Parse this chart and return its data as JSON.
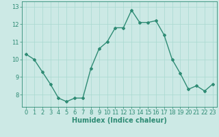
{
  "x": [
    0,
    1,
    2,
    3,
    4,
    5,
    6,
    7,
    8,
    9,
    10,
    11,
    12,
    13,
    14,
    15,
    16,
    17,
    18,
    19,
    20,
    21,
    22,
    23
  ],
  "y": [
    10.3,
    10.0,
    9.3,
    8.6,
    7.8,
    7.6,
    7.8,
    7.8,
    9.5,
    10.6,
    11.0,
    11.8,
    11.8,
    12.8,
    12.1,
    12.1,
    12.2,
    11.4,
    10.0,
    9.2,
    8.3,
    8.5,
    8.2,
    8.6
  ],
  "line_color": "#2e8b74",
  "marker": "D",
  "marker_size": 2.0,
  "line_width": 1.0,
  "bg_color": "#cce9e5",
  "grid_color": "#a8d8d0",
  "xlabel": "Humidex (Indice chaleur)",
  "xlabel_fontsize": 7,
  "tick_fontsize": 6,
  "ylim": [
    7.3,
    13.3
  ],
  "xlim": [
    -0.5,
    23.5
  ],
  "yticks": [
    8,
    9,
    10,
    11,
    12,
    13
  ],
  "xticks": [
    0,
    1,
    2,
    3,
    4,
    5,
    6,
    7,
    8,
    9,
    10,
    11,
    12,
    13,
    14,
    15,
    16,
    17,
    18,
    19,
    20,
    21,
    22,
    23
  ]
}
